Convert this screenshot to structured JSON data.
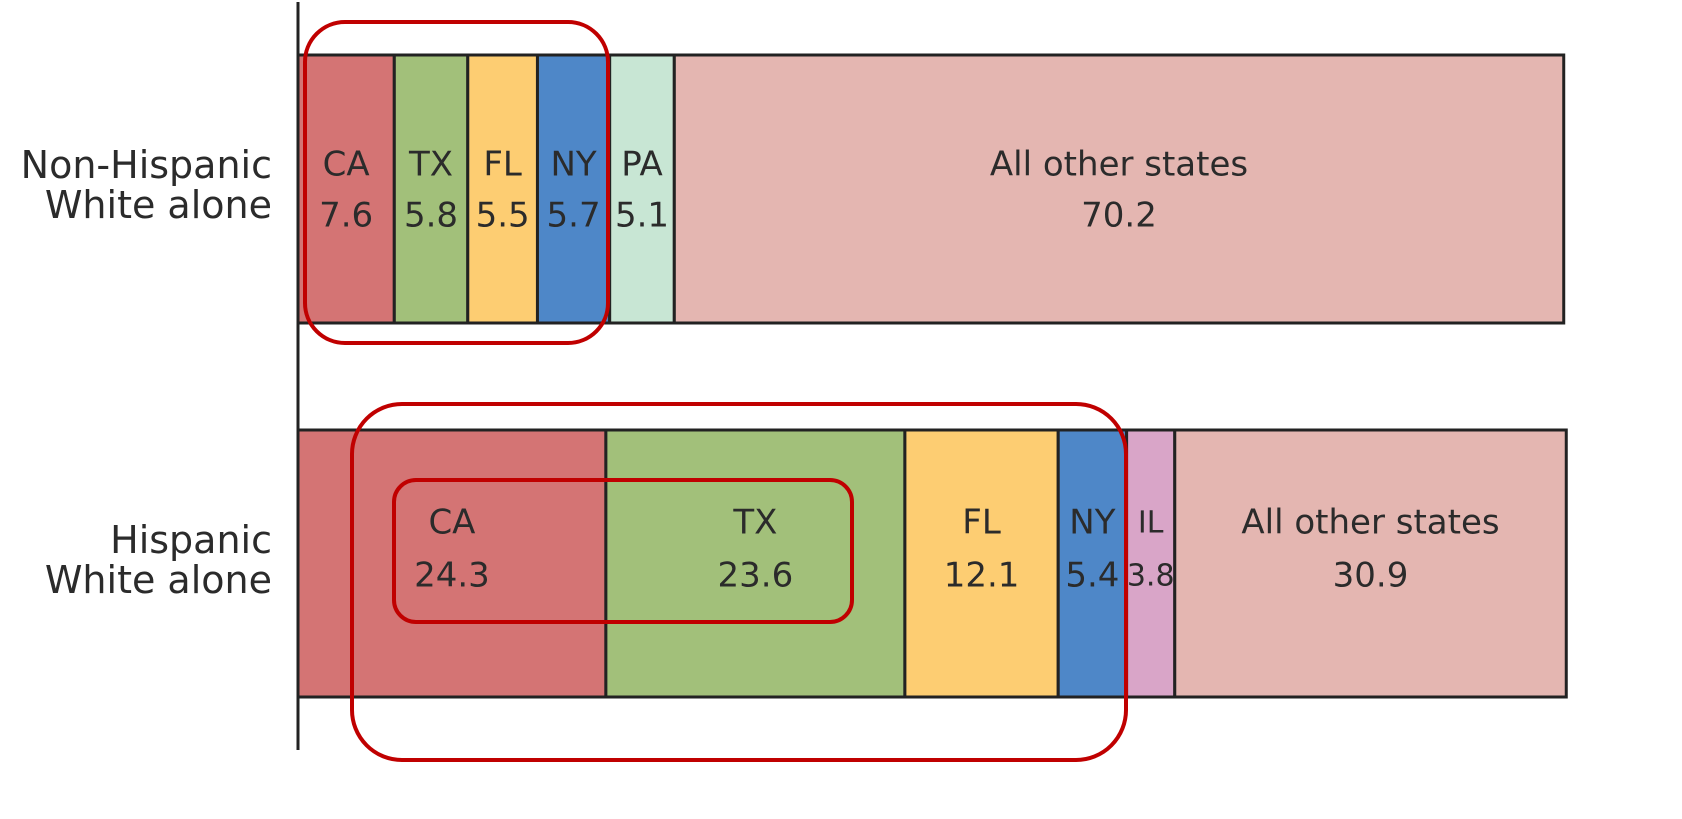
{
  "chart_data": {
    "type": "stacked_bar",
    "xlim": [
      0,
      100
    ],
    "bars": [
      {
        "category": "Non-Hispanic\nWhite alone",
        "segments": [
          {
            "name": "CA",
            "value": 7.6,
            "color": "#d47474"
          },
          {
            "name": "TX",
            "value": 5.8,
            "color": "#a2c07a"
          },
          {
            "name": "FL",
            "value": 5.5,
            "color": "#fdcd72"
          },
          {
            "name": "NY",
            "value": 5.7,
            "color": "#4e87c8"
          },
          {
            "name": "PA",
            "value": 5.1,
            "color": "#c8e6d4"
          },
          {
            "name": "All other states",
            "value": 70.2,
            "color": "#e4b6b1"
          }
        ]
      },
      {
        "category": "Hispanic\nWhite alone",
        "segments": [
          {
            "name": "CA",
            "value": 24.3,
            "color": "#d47474"
          },
          {
            "name": "TX",
            "value": 23.6,
            "color": "#a2c07a"
          },
          {
            "name": "FL",
            "value": 12.1,
            "color": "#fdcd72"
          },
          {
            "name": "NY",
            "value": 5.4,
            "color": "#4e87c8"
          },
          {
            "name": "IL",
            "value": 3.8,
            "color": "#d9a5c8"
          },
          {
            "name": "All other states",
            "value": 30.9,
            "color": "#e4b6b1"
          }
        ]
      }
    ]
  }
}
